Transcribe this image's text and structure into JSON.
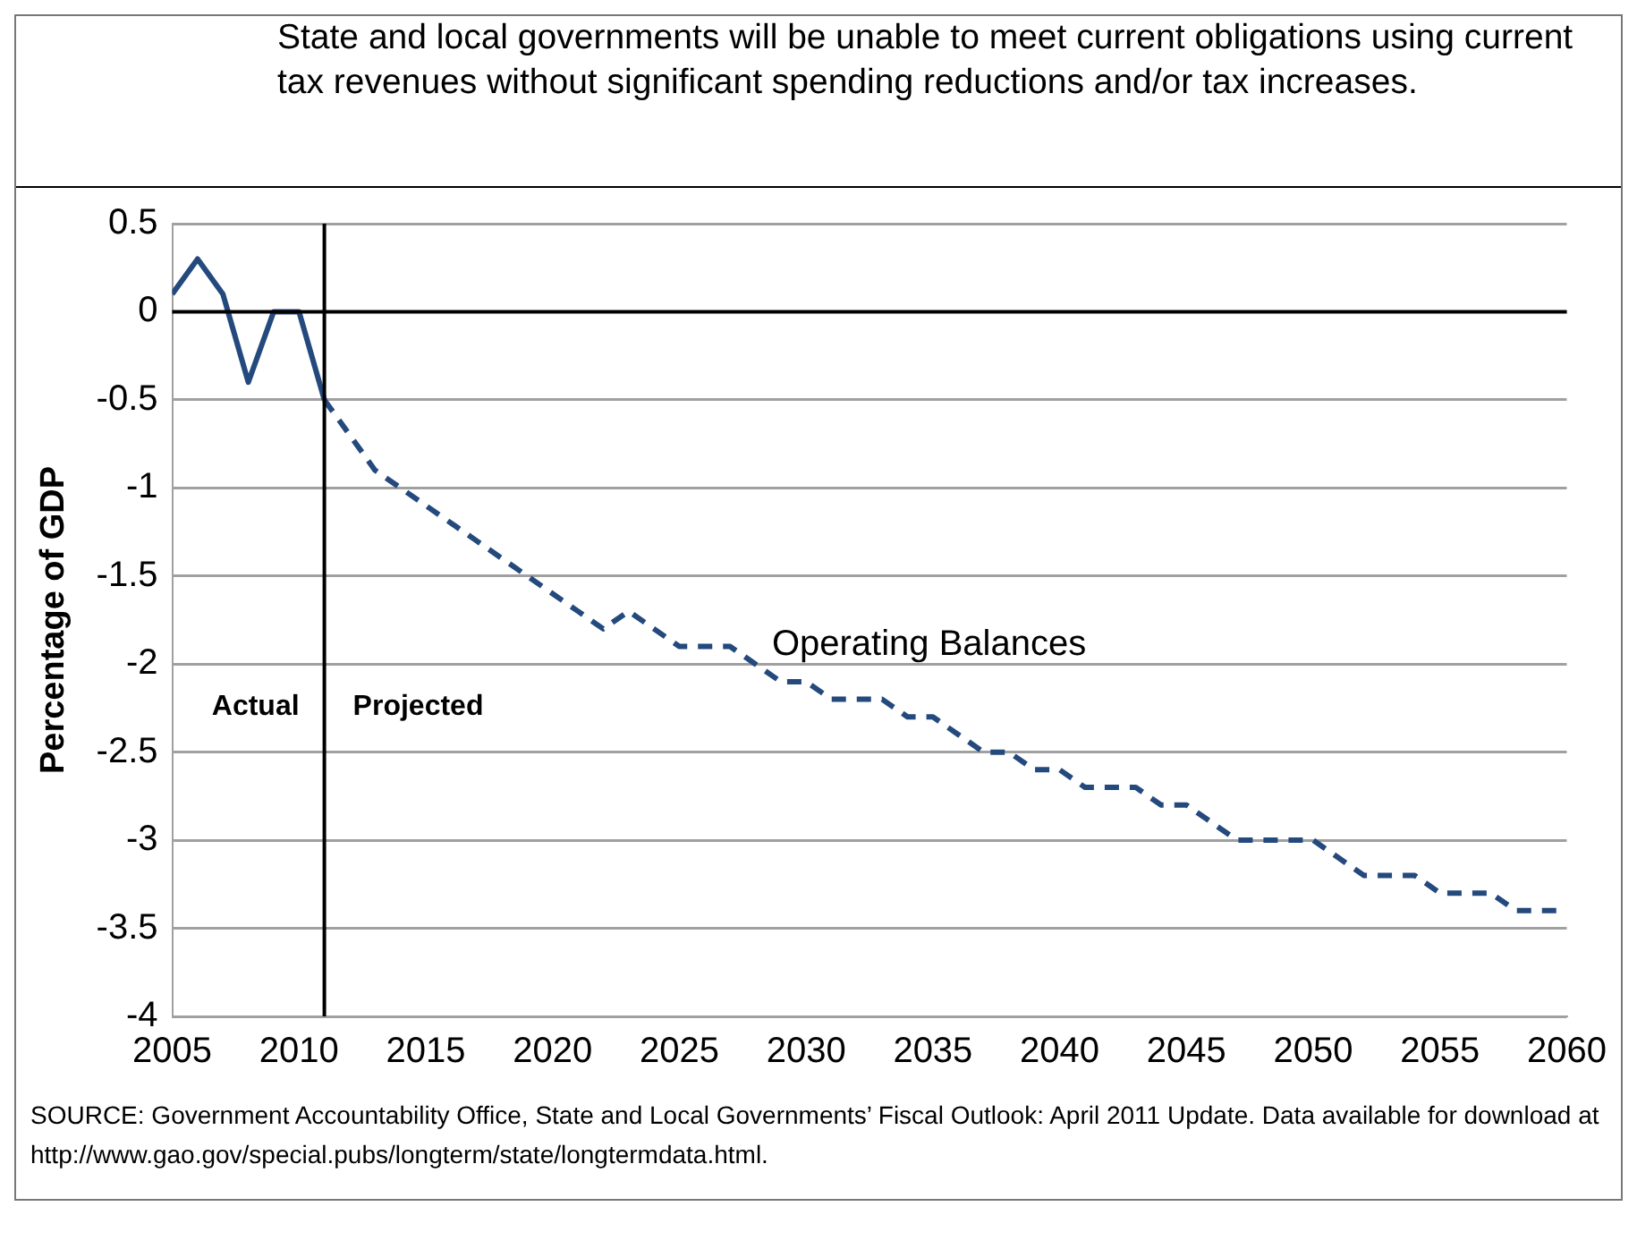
{
  "chart_data": {
    "type": "line",
    "title": "State and local governments will be unable to meet current obligations using current tax revenues without significant spending reductions and/or tax increases.",
    "ylabel": "Percentage of GDP",
    "xlim": [
      2005,
      2060
    ],
    "xticks": [
      2005,
      2010,
      2015,
      2020,
      2025,
      2030,
      2035,
      2040,
      2045,
      2050,
      2055,
      2060
    ],
    "ylim": [
      -4,
      0.5
    ],
    "yticks": [
      0.5,
      0,
      -0.5,
      -1,
      -1.5,
      -2,
      -2.5,
      -3,
      -3.5,
      -4
    ],
    "grid": "y",
    "legend": false,
    "marker": "none",
    "series": [
      {
        "color": "#24497d",
        "line_style": "solid",
        "x": [
          2005,
          2006,
          2007,
          2008,
          2009,
          2010,
          2011
        ],
        "values": [
          0.1,
          0.3,
          0.1,
          -0.4,
          0,
          0,
          -0.5
        ]
      },
      {
        "color": "#24497d",
        "line_style": "dashed",
        "x": [
          2011,
          2012,
          2013,
          2014,
          2015,
          2016,
          2017,
          2018,
          2019,
          2020,
          2021,
          2022,
          2023,
          2024,
          2025,
          2026,
          2027,
          2028,
          2029,
          2030,
          2031,
          2032,
          2033,
          2034,
          2035,
          2036,
          2037,
          2038,
          2039,
          2040,
          2041,
          2042,
          2043,
          2044,
          2045,
          2046,
          2047,
          2048,
          2049,
          2050,
          2051,
          2052,
          2053,
          2054,
          2055,
          2056,
          2057,
          2058,
          2059,
          2060
        ],
        "values": [
          -0.5,
          -0.7,
          -0.9,
          -1.0,
          -1.1,
          -1.2,
          -1.3,
          -1.4,
          -1.5,
          -1.6,
          -1.7,
          -1.8,
          -1.7,
          -1.8,
          -1.9,
          -1.9,
          -1.9,
          -2.0,
          -2.1,
          -2.1,
          -2.2,
          -2.2,
          -2.2,
          -2.3,
          -2.3,
          -2.4,
          -2.5,
          -2.5,
          -2.6,
          -2.6,
          -2.7,
          -2.7,
          -2.7,
          -2.8,
          -2.8,
          -2.9,
          -3.0,
          -3.0,
          -3.0,
          -3.0,
          -3.1,
          -3.2,
          -3.2,
          -3.2,
          -3.3,
          -3.3,
          -3.3,
          -3.4,
          -3.4,
          -3.4
        ]
      }
    ],
    "ref_lines": [
      {
        "axis": "x",
        "value": 2011,
        "label": null,
        "color": "#000000"
      },
      {
        "axis": "y",
        "value": 0,
        "label": null,
        "color": "#000000"
      }
    ],
    "annotations": [
      "Operating Balances",
      "Actual",
      "Projected",
      "SOURCE: Government Accountability Office, State and Local Governments’ Fiscal Outlook: April 2011 Update. Data available for download at http://www.gao.gov/special.pubs/longterm/state/longtermdata.html."
    ]
  }
}
